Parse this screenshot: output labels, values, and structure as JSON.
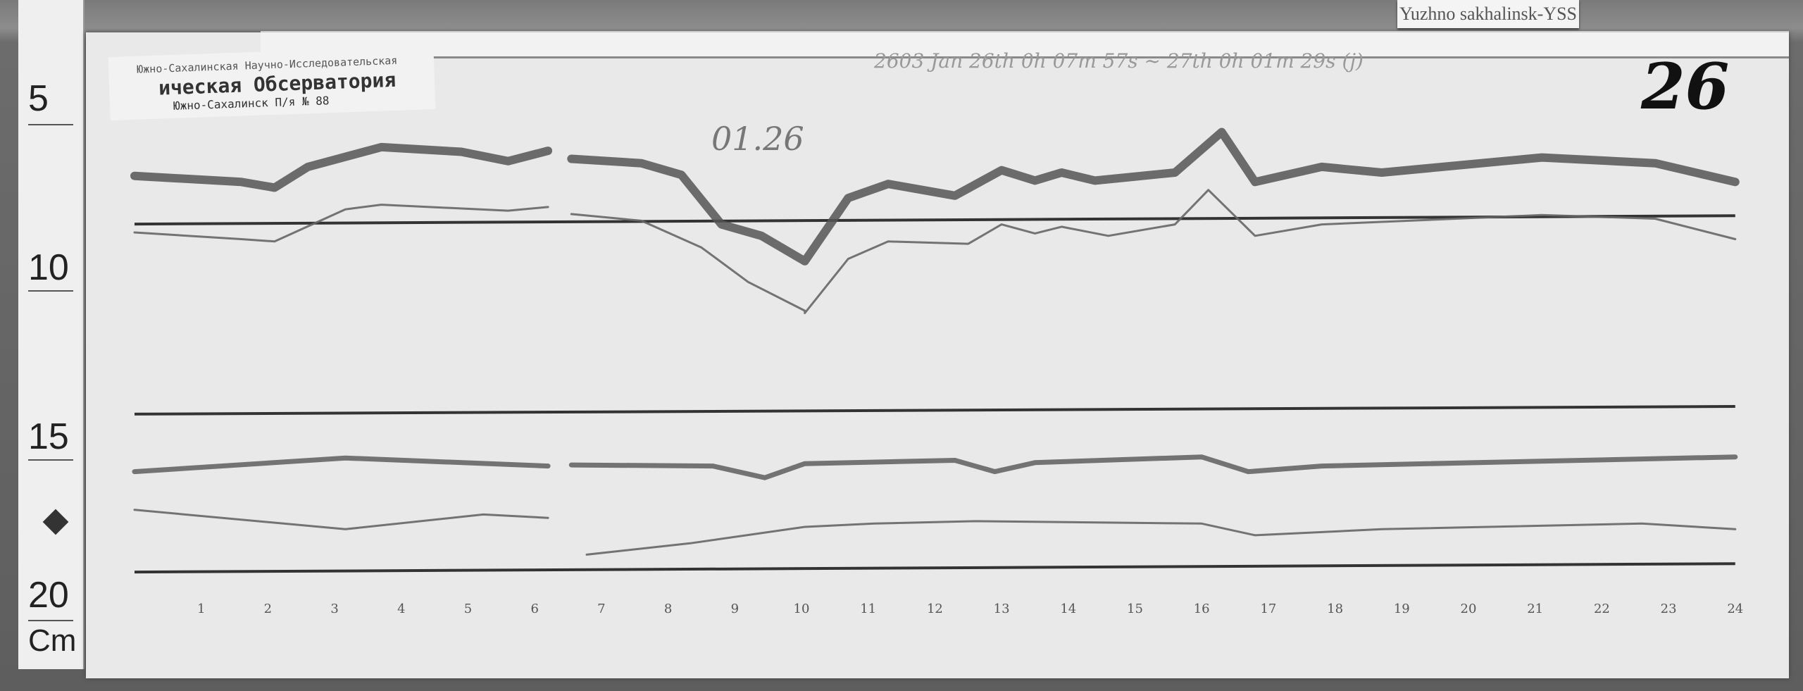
{
  "station_label": "Yuzhno sakhalinsk-YSS",
  "stamp": {
    "line1": "Южно-Сахалинская Научно-Исследовательская",
    "line2": "ическая Обсерватория",
    "line3": "Южно-Сахалинск П/я № 88"
  },
  "annotations": {
    "header": "2603 Jan 26th 0h 07m 57s ~ 27th 0h 01m 29s (j)",
    "date": "01.26",
    "sheet_number": "26"
  },
  "ruler": {
    "labels": [
      "5",
      "10",
      "15",
      "20"
    ],
    "unit": "Cm"
  },
  "colors": {
    "paper": "#e9e9e9",
    "trace": "#444444",
    "wood": "#6a6a6a"
  },
  "chart_data": {
    "type": "line",
    "title": "",
    "xlabel": "",
    "ylabel": "",
    "x_ticks": [
      "1",
      "2",
      "3",
      "4",
      "5",
      "6",
      "7",
      "8",
      "9",
      "10",
      "11",
      "12",
      "13",
      "14",
      "15",
      "16",
      "17",
      "18",
      "19",
      "20",
      "21",
      "22",
      "23",
      "24"
    ],
    "xlim": [
      0,
      24
    ],
    "ylim_cm": [
      5,
      20
    ],
    "grid": false,
    "series": [
      {
        "x": [
          0,
          1.6,
          2.1,
          2.6,
          3.7,
          4.9,
          5.6,
          6.2,
          null,
          6.55,
          7.6,
          8.2,
          8.8,
          9.4,
          10.05,
          10.7,
          11.3,
          12.3,
          13.0,
          13.5,
          13.9,
          14.4,
          15.6,
          16.3,
          16.8,
          17.8,
          18.7,
          21.1,
          22.8,
          24.0
        ],
        "y": [
          7.31,
          7.49,
          7.66,
          7.04,
          6.45,
          6.59,
          6.87,
          6.56,
          null,
          6.8,
          6.93,
          7.28,
          8.76,
          9.1,
          9.86,
          7.97,
          7.55,
          7.9,
          7.14,
          7.45,
          7.21,
          7.45,
          7.21,
          6.0,
          7.49,
          7.04,
          7.21,
          6.76,
          6.93,
          7.49
        ],
        "weight": "thick"
      },
      {
        "x": [
          0,
          1.6,
          2.1,
          3.16,
          3.7,
          5.6,
          6.2,
          null,
          6.55,
          7.6,
          8.5,
          9.2,
          10.05,
          10.05,
          10.7,
          11.3,
          12.5,
          13.0,
          13.5,
          13.9,
          14.6,
          15.6,
          16.1,
          16.8,
          17.8,
          21.1,
          22.8,
          24.0
        ],
        "y": [
          9.0,
          9.2,
          9.27,
          8.31,
          8.17,
          8.35,
          8.24,
          null,
          8.45,
          8.65,
          9.45,
          10.48,
          11.34,
          11.41,
          9.79,
          9.27,
          9.34,
          8.76,
          9.03,
          8.83,
          9.1,
          8.76,
          7.73,
          9.1,
          8.76,
          8.48,
          8.59,
          9.2
        ],
        "weight": "thin"
      },
      {
        "x": [
          0,
          3.16,
          6.2,
          null,
          6.55,
          8.67,
          9.45,
          10.05,
          12.3,
          12.9,
          13.5,
          16.0,
          16.7,
          17.8,
          24.0
        ],
        "y": [
          16.15,
          15.74,
          15.98,
          null,
          15.95,
          15.98,
          16.33,
          15.91,
          15.81,
          16.15,
          15.88,
          15.71,
          16.15,
          15.98,
          15.71
        ],
        "weight": "medium"
      },
      {
        "x": [
          0,
          3.16,
          5.23,
          6.2,
          null,
          6.78,
          8.33,
          10.05,
          11.09,
          12.6,
          16.0,
          16.8,
          18.7,
          22.6,
          24.0
        ],
        "y": [
          17.29,
          17.87,
          17.43,
          17.53,
          null,
          18.63,
          18.29,
          17.8,
          17.7,
          17.63,
          17.7,
          18.05,
          17.87,
          17.7,
          17.87
        ],
        "weight": "thin"
      }
    ],
    "baselines_cm": [
      [
        8.75,
        8.5
      ],
      [
        14.43,
        14.2
      ],
      [
        19.15,
        18.9
      ]
    ]
  }
}
